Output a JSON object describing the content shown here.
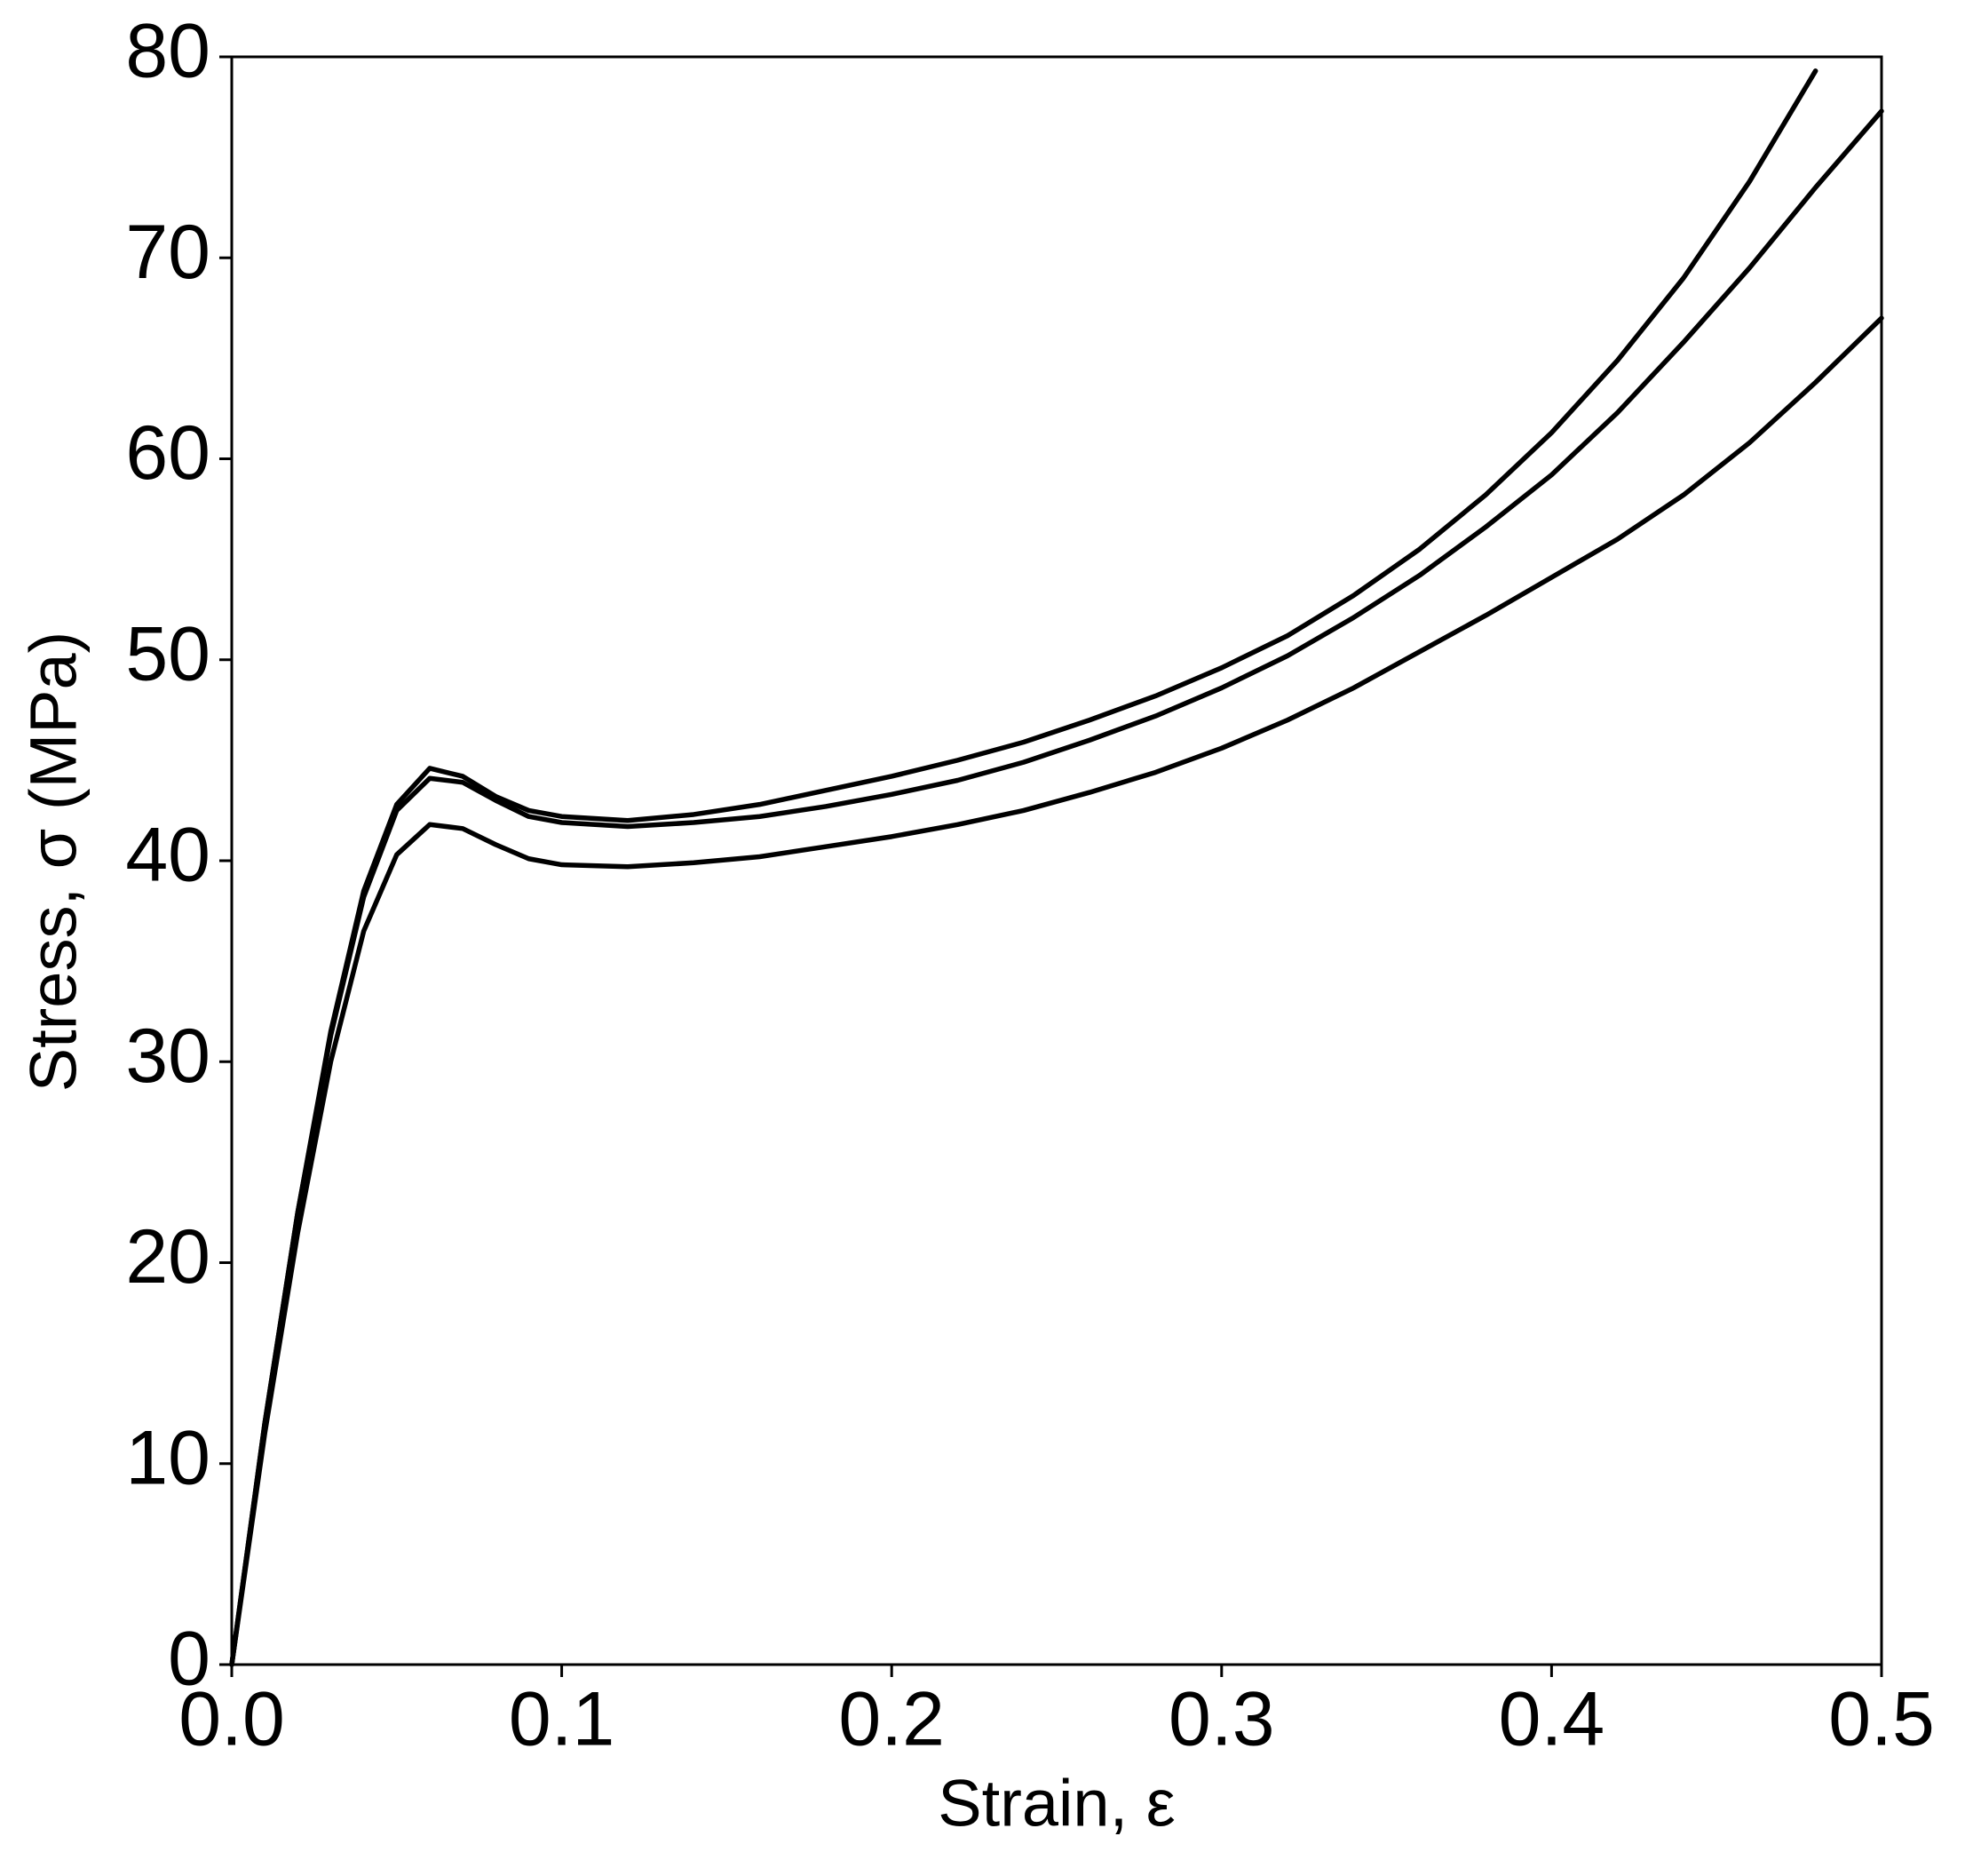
{
  "chart_data": {
    "type": "line",
    "xlabel": "Strain, ε",
    "ylabel": "Stress, σ (MPa)",
    "x": [
      0,
      0.01,
      0.02,
      0.03,
      0.04,
      0.05,
      0.06,
      0.07,
      0.08,
      0.09,
      0.1,
      0.12,
      0.14,
      0.16,
      0.18,
      0.2,
      0.22,
      0.24,
      0.26,
      0.28,
      0.3,
      0.32,
      0.34,
      0.36,
      0.38,
      0.4,
      0.42,
      0.44,
      0.46,
      0.48,
      0.5
    ],
    "series": [
      {
        "color": "#000000",
        "values": [
          0,
          12,
          22.5,
          31.5,
          38.5,
          42.8,
          44.6,
          44.2,
          43.2,
          42.5,
          42.2,
          42.0,
          42.3,
          42.8,
          43.5,
          44.2,
          45.0,
          45.9,
          47.0,
          48.2,
          49.6,
          51.2,
          53.2,
          55.5,
          58.2,
          61.3,
          64.9,
          69.0,
          73.8,
          79.3,
          null
        ]
      },
      {
        "color": "#000000",
        "values": [
          0,
          12,
          22.5,
          31.3,
          38.2,
          42.5,
          44.1,
          43.9,
          43.0,
          42.2,
          41.9,
          41.7,
          41.9,
          42.2,
          42.7,
          43.3,
          44.0,
          44.9,
          46.0,
          47.2,
          48.6,
          50.2,
          52.1,
          54.2,
          56.6,
          59.2,
          62.3,
          65.8,
          69.5,
          73.5,
          77.3
        ]
      },
      {
        "color": "#000000",
        "values": [
          0,
          11.5,
          21.5,
          30,
          36.5,
          40.3,
          41.8,
          41.6,
          40.8,
          40.1,
          39.8,
          39.7,
          39.9,
          40.2,
          40.7,
          41.2,
          41.8,
          42.5,
          43.4,
          44.4,
          45.6,
          47.0,
          48.6,
          50.4,
          52.2,
          54.1,
          56.0,
          58.2,
          60.8,
          63.8,
          67.0
        ]
      }
    ],
    "xlim": [
      0,
      0.5
    ],
    "xticks": [
      {
        "value": 0,
        "label": "0.0"
      },
      0.1,
      0.2,
      0.3,
      0.4,
      0.5
    ],
    "ylim": [
      0,
      80
    ],
    "yticks": [
      0,
      10,
      20,
      30,
      40,
      50,
      60,
      70,
      80
    ],
    "grid": false
  }
}
